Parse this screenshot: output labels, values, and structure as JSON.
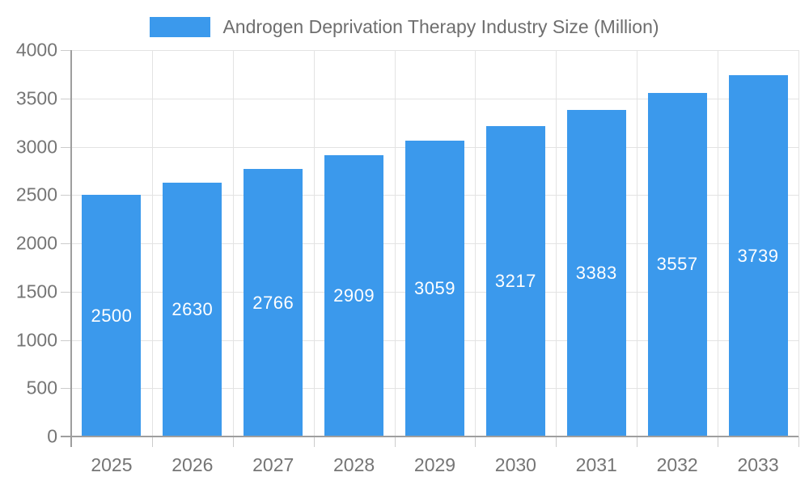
{
  "chart_data": {
    "type": "bar",
    "title": "Androgen Deprivation Therapy Industry Size (Million)",
    "categories": [
      "2025",
      "2026",
      "2027",
      "2028",
      "2029",
      "2030",
      "2031",
      "2032",
      "2033"
    ],
    "values": [
      2500,
      2630,
      2766,
      2909,
      3059,
      3217,
      3383,
      3557,
      3739
    ],
    "xlabel": "",
    "ylabel": "",
    "ylim": [
      0,
      4000
    ],
    "ytick_step": 500,
    "ytick_labels": [
      "0",
      "500",
      "1000",
      "1500",
      "2000",
      "2500",
      "3000",
      "3500",
      "4000"
    ],
    "grid": true,
    "legend_position": "top-center",
    "data_labels": "white text centered inside bars",
    "colors": {
      "bar": "#3b99ec",
      "grid": "#e3e3e3",
      "axis_line": "#9e9e9e",
      "tick": "#cccccc",
      "axis_text": "#757575",
      "title_text": "#6e6e6e",
      "bar_label_text": "#ffffff",
      "background": "#ffffff"
    }
  }
}
